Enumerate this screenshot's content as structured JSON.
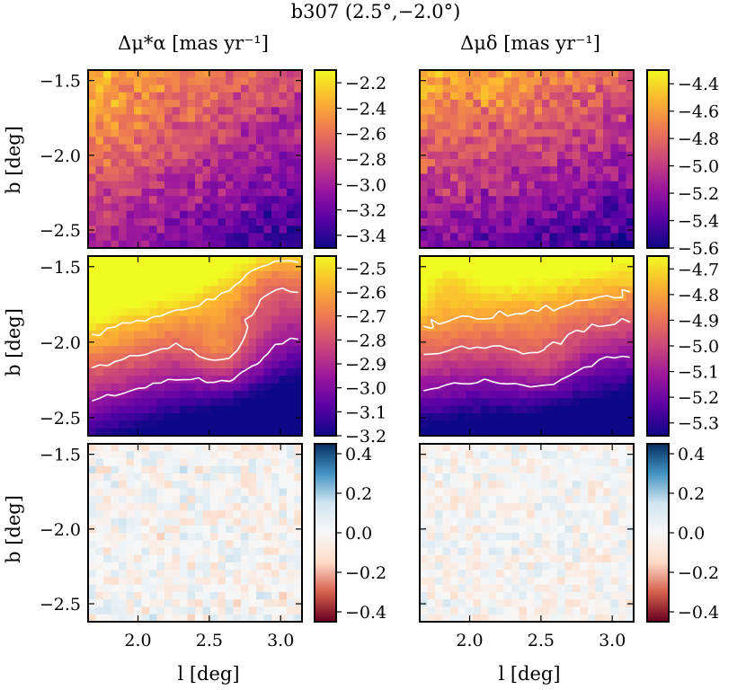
{
  "figure": {
    "title": "b307 (2.5°,−2.0°)",
    "col_titles": [
      "Δμ*α [mas yr⁻¹]",
      "Δμδ [mas yr⁻¹]"
    ],
    "xlabel": "l [deg]",
    "ylabel": "b [deg]"
  },
  "colormaps": {
    "plasma": [
      "#0d0887",
      "#5c01a6",
      "#9c179e",
      "#cc4778",
      "#ed7953",
      "#fdb42f",
      "#f0f921"
    ],
    "rdbu": [
      "#67001f",
      "#d6604d",
      "#fddbc7",
      "#f7f7f7",
      "#d1e5f0",
      "#4393c3",
      "#053061"
    ]
  },
  "chart_data": [
    {
      "type": "heatmap",
      "id": "pm_ra_data",
      "row": 0,
      "col": 0,
      "xlim": [
        1.65,
        3.15
      ],
      "ylim": [
        -2.62,
        -1.43
      ],
      "xticks": [
        2.0,
        2.5,
        3.0
      ],
      "xtick_labels": [
        "2.0",
        "2.5",
        "3.0"
      ],
      "yticks": [
        -2.5,
        -2.0,
        -1.5
      ],
      "ytick_labels": [
        "−2.5",
        "−2.0",
        "−1.5"
      ],
      "grid": [
        28,
        24
      ],
      "cmap": "plasma",
      "vmin": -3.5,
      "vmax": -2.1,
      "colorbar_ticks": [
        -3.4,
        -3.2,
        -3.0,
        -2.8,
        -2.6,
        -2.4,
        -2.2
      ],
      "colorbar_labels": [
        "−3.4",
        "−3.2",
        "−3.0",
        "−2.8",
        "−2.6",
        "−2.4",
        "−2.2"
      ],
      "noise": 0.22,
      "seed": 11,
      "trend": {
        "base": -2.85,
        "dl": -0.25,
        "db": -0.35,
        "bumps": []
      }
    },
    {
      "type": "heatmap",
      "id": "pm_dec_data",
      "row": 0,
      "col": 1,
      "xlim": [
        1.65,
        3.15
      ],
      "ylim": [
        -2.62,
        -1.43
      ],
      "xticks": [
        2.0,
        2.5,
        3.0
      ],
      "xtick_labels": [
        "2.0",
        "2.5",
        "3.0"
      ],
      "yticks": [
        -2.5,
        -2.0,
        -1.5
      ],
      "ytick_labels": [
        "",
        "",
        ""
      ],
      "grid": [
        28,
        24
      ],
      "cmap": "plasma",
      "vmin": -5.6,
      "vmax": -4.3,
      "colorbar_ticks": [
        -5.6,
        -5.4,
        -5.2,
        -5.0,
        -4.8,
        -4.6,
        -4.4
      ],
      "colorbar_labels": [
        "−5.6",
        "−5.4",
        "−5.2",
        "−5.0",
        "−4.8",
        "−4.6",
        "−4.4"
      ],
      "noise": 0.22,
      "seed": 23,
      "trend": {
        "base": -5.0,
        "dl": -0.15,
        "db": -0.4,
        "bumps": []
      }
    },
    {
      "type": "heatmap",
      "id": "pm_ra_model",
      "row": 1,
      "col": 0,
      "xlim": [
        1.65,
        3.15
      ],
      "ylim": [
        -2.62,
        -1.43
      ],
      "xticks": [
        2.0,
        2.5,
        3.0
      ],
      "xtick_labels": [
        "2.0",
        "2.5",
        "3.0"
      ],
      "yticks": [
        -2.5,
        -2.0,
        -1.5
      ],
      "ytick_labels": [
        "−2.5",
        "−2.0",
        "−1.5"
      ],
      "grid": [
        28,
        24
      ],
      "cmap": "plasma",
      "vmin": -3.2,
      "vmax": -2.45,
      "colorbar_ticks": [
        -3.2,
        -3.1,
        -3.0,
        -2.9,
        -2.8,
        -2.7,
        -2.6,
        -2.5
      ],
      "colorbar_labels": [
        "−3.2",
        "−3.1",
        "−3.0",
        "−2.9",
        "−2.8",
        "−2.7",
        "−2.6",
        "−2.5"
      ],
      "noise": 0.03,
      "seed": 37,
      "trend": {
        "base": -2.78,
        "dl": -0.2,
        "db": -0.55,
        "bumps": [
          {
            "l": 2.6,
            "b": -2.1,
            "amp": 0.2,
            "s": 0.16
          },
          {
            "l": 2.95,
            "b": -1.6,
            "amp": -0.15,
            "s": 0.18
          }
        ]
      },
      "contours": [
        -2.95,
        -2.75,
        -2.55
      ]
    },
    {
      "type": "heatmap",
      "id": "pm_dec_model",
      "row": 1,
      "col": 1,
      "xlim": [
        1.65,
        3.15
      ],
      "ylim": [
        -2.62,
        -1.43
      ],
      "xticks": [
        2.0,
        2.5,
        3.0
      ],
      "xtick_labels": [
        "2.0",
        "2.5",
        "3.0"
      ],
      "yticks": [
        -2.5,
        -2.0,
        -1.5
      ],
      "ytick_labels": [
        "",
        "",
        ""
      ],
      "grid": [
        28,
        24
      ],
      "cmap": "plasma",
      "vmin": -5.35,
      "vmax": -4.65,
      "colorbar_ticks": [
        -5.3,
        -5.2,
        -5.1,
        -5.0,
        -4.9,
        -4.8,
        -4.7
      ],
      "colorbar_labels": [
        "−5.3",
        "−5.2",
        "−5.1",
        "−5.0",
        "−4.9",
        "−4.8",
        "−4.7"
      ],
      "noise": 0.03,
      "seed": 41,
      "trend": {
        "base": -4.98,
        "dl": -0.1,
        "db": -0.5,
        "bumps": [
          {
            "l": 1.85,
            "b": -1.55,
            "amp": -0.15,
            "s": 0.14
          },
          {
            "l": 2.5,
            "b": -2.15,
            "amp": 0.12,
            "s": 0.18
          }
        ]
      },
      "contours": [
        -5.15,
        -4.95,
        -4.8
      ]
    },
    {
      "type": "heatmap",
      "id": "pm_ra_residual",
      "row": 2,
      "col": 0,
      "xlim": [
        1.65,
        3.15
      ],
      "ylim": [
        -2.62,
        -1.43
      ],
      "xticks": [
        2.0,
        2.5,
        3.0
      ],
      "xtick_labels": [
        "2.0",
        "2.5",
        "3.0"
      ],
      "yticks": [
        -2.5,
        -2.0,
        -1.5
      ],
      "ytick_labels": [
        "−2.5",
        "−2.0",
        "−1.5"
      ],
      "grid": [
        28,
        24
      ],
      "cmap": "rdbu",
      "vmin": -0.45,
      "vmax": 0.45,
      "colorbar_ticks": [
        -0.4,
        -0.2,
        0.0,
        0.2,
        0.4
      ],
      "colorbar_labels": [
        "−0.4",
        "−0.2",
        "0.0",
        "0.2",
        "0.4"
      ],
      "noise": 0.18,
      "seed": 53,
      "trend": {
        "base": 0.0,
        "dl": 0.0,
        "db": 0.0,
        "bumps": []
      }
    },
    {
      "type": "heatmap",
      "id": "pm_dec_residual",
      "row": 2,
      "col": 1,
      "xlim": [
        1.65,
        3.15
      ],
      "ylim": [
        -2.62,
        -1.43
      ],
      "xticks": [
        2.0,
        2.5,
        3.0
      ],
      "xtick_labels": [
        "2.0",
        "2.5",
        "3.0"
      ],
      "yticks": [
        -2.5,
        -2.0,
        -1.5
      ],
      "ytick_labels": [
        "",
        "",
        ""
      ],
      "grid": [
        28,
        24
      ],
      "cmap": "rdbu",
      "vmin": -0.45,
      "vmax": 0.45,
      "colorbar_ticks": [
        -0.4,
        -0.2,
        0.0,
        0.2,
        0.4
      ],
      "colorbar_labels": [
        "−0.4",
        "−0.2",
        "0.0",
        "0.2",
        "0.4"
      ],
      "noise": 0.14,
      "seed": 67,
      "trend": {
        "base": 0.0,
        "dl": 0.0,
        "db": 0.0,
        "bumps": []
      }
    }
  ]
}
